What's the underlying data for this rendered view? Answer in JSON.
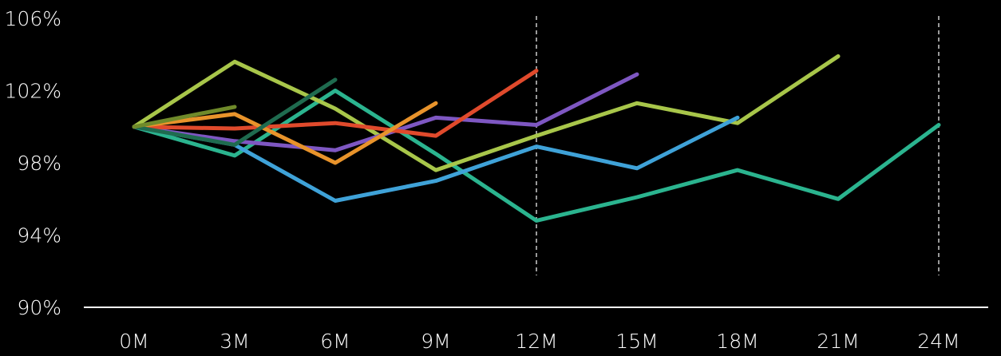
{
  "chart_data": {
    "type": "line",
    "title": "",
    "xlabel": "",
    "ylabel": "",
    "categories": [
      "0M",
      "3M",
      "6M",
      "9M",
      "12M",
      "15M",
      "18M",
      "21M",
      "24M"
    ],
    "x": [
      0,
      3,
      6,
      9,
      12,
      15,
      18,
      21,
      24
    ],
    "ylim": [
      90,
      106
    ],
    "yticks": [
      90,
      94,
      98,
      102,
      106
    ],
    "ytick_labels": [
      "90%",
      "94%",
      "98%",
      "102%",
      "106%"
    ],
    "reference_lines_x": [
      12,
      24
    ],
    "grid": false,
    "legend": "none",
    "series": [
      {
        "color": "#2bb48f",
        "x": [
          0,
          3,
          6,
          9,
          12,
          15,
          18,
          21,
          24
        ],
        "values": [
          100,
          98.4,
          102.0,
          98.5,
          94.8,
          96.1,
          97.6,
          96.0,
          100.1
        ]
      },
      {
        "color": "#a8c64a",
        "x": [
          0,
          3,
          6,
          9,
          12,
          15,
          18,
          21
        ],
        "values": [
          100,
          103.6,
          101.0,
          97.6,
          99.5,
          101.3,
          100.2,
          103.9
        ]
      },
      {
        "color": "#3fa2d8",
        "x": [
          0,
          3,
          6,
          9,
          12,
          15,
          18
        ],
        "values": [
          100,
          99.0,
          95.9,
          97.0,
          98.9,
          97.7,
          100.5
        ]
      },
      {
        "color": "#7e57c2",
        "x": [
          0,
          3,
          6,
          9,
          12,
          15
        ],
        "values": [
          100,
          99.2,
          98.7,
          100.5,
          100.1,
          102.9
        ]
      },
      {
        "color": "#e04a2c",
        "x": [
          0,
          3,
          6,
          9,
          12
        ],
        "values": [
          100,
          99.9,
          100.2,
          99.5,
          103.1
        ]
      },
      {
        "color": "#e8932b",
        "x": [
          0,
          3,
          6,
          9
        ],
        "values": [
          100,
          100.7,
          98.0,
          101.3
        ]
      },
      {
        "color": "#1f6b4f",
        "x": [
          0,
          3,
          6
        ],
        "values": [
          100,
          99.0,
          102.6
        ]
      },
      {
        "color": "#6f8a2a",
        "x": [
          0,
          3
        ],
        "values": [
          100,
          101.1
        ]
      }
    ]
  }
}
